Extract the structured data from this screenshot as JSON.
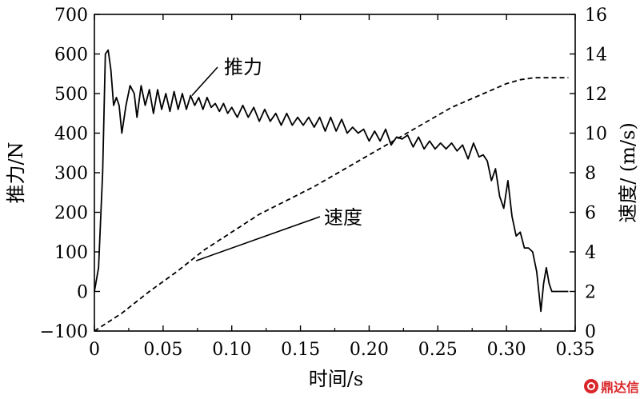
{
  "chart_data": {
    "type": "line",
    "xlabel": "时间/s",
    "ylabel_left": "推力/N",
    "ylabel_right": "速度/ (m/s)",
    "xlim": [
      0,
      0.35
    ],
    "ylim_left": [
      -100,
      700
    ],
    "ylim_right": [
      0,
      16
    ],
    "x_ticks": [
      "0",
      "0.05",
      "0.10",
      "0.15",
      "0.20",
      "0.25",
      "0.30",
      "0.35"
    ],
    "x_tick_values": [
      0,
      0.05,
      0.1,
      0.15,
      0.2,
      0.25,
      0.3,
      0.35
    ],
    "y_left_ticks": [
      "−100",
      "0",
      "100",
      "200",
      "300",
      "400",
      "500",
      "600",
      "700"
    ],
    "y_left_tick_values": [
      -100,
      0,
      100,
      200,
      300,
      400,
      500,
      600,
      700
    ],
    "y_right_ticks": [
      "0",
      "2",
      "4",
      "6",
      "8",
      "10",
      "12",
      "14",
      "16"
    ],
    "y_right_tick_values": [
      0,
      2,
      4,
      6,
      8,
      10,
      12,
      14,
      16
    ],
    "grid": false,
    "series": [
      {
        "name": "推力",
        "axis": "left",
        "style": "solid",
        "x": [
          0,
          0.003,
          0.006,
          0.008,
          0.01,
          0.012,
          0.014,
          0.016,
          0.018,
          0.02,
          0.023,
          0.026,
          0.029,
          0.031,
          0.034,
          0.037,
          0.04,
          0.043,
          0.046,
          0.049,
          0.052,
          0.055,
          0.058,
          0.061,
          0.064,
          0.067,
          0.07,
          0.073,
          0.076,
          0.079,
          0.082,
          0.085,
          0.088,
          0.091,
          0.094,
          0.097,
          0.1,
          0.104,
          0.108,
          0.112,
          0.116,
          0.12,
          0.124,
          0.128,
          0.132,
          0.136,
          0.14,
          0.144,
          0.148,
          0.152,
          0.156,
          0.16,
          0.164,
          0.168,
          0.172,
          0.176,
          0.18,
          0.184,
          0.188,
          0.192,
          0.196,
          0.2,
          0.204,
          0.208,
          0.212,
          0.216,
          0.22,
          0.224,
          0.228,
          0.232,
          0.236,
          0.24,
          0.244,
          0.248,
          0.252,
          0.256,
          0.26,
          0.264,
          0.268,
          0.272,
          0.276,
          0.28,
          0.283,
          0.286,
          0.289,
          0.292,
          0.295,
          0.298,
          0.301,
          0.304,
          0.307,
          0.31,
          0.313,
          0.316,
          0.319,
          0.322,
          0.325,
          0.327,
          0.329,
          0.331,
          0.333,
          0.336,
          0.34,
          0.345
        ],
        "y": [
          0,
          60,
          300,
          600,
          610,
          560,
          470,
          490,
          470,
          400,
          470,
          520,
          500,
          440,
          520,
          470,
          510,
          450,
          510,
          460,
          500,
          455,
          505,
          460,
          500,
          460,
          495,
          470,
          490,
          460,
          490,
          465,
          475,
          455,
          475,
          450,
          465,
          440,
          470,
          440,
          465,
          430,
          460,
          430,
          450,
          420,
          450,
          420,
          440,
          420,
          440,
          415,
          440,
          405,
          440,
          405,
          435,
          400,
          415,
          400,
          410,
          380,
          405,
          380,
          410,
          370,
          390,
          385,
          395,
          365,
          390,
          360,
          380,
          360,
          375,
          360,
          375,
          355,
          370,
          335,
          375,
          340,
          345,
          330,
          280,
          310,
          240,
          210,
          280,
          190,
          140,
          150,
          110,
          110,
          100,
          50,
          -50,
          20,
          60,
          20,
          0,
          0,
          0,
          0
        ]
      },
      {
        "name": "速度",
        "axis": "right",
        "style": "dashed",
        "x": [
          0,
          0.02,
          0.04,
          0.06,
          0.08,
          0.1,
          0.12,
          0.14,
          0.16,
          0.18,
          0.2,
          0.22,
          0.24,
          0.26,
          0.28,
          0.3,
          0.31,
          0.32,
          0.33,
          0.34,
          0.345
        ],
        "y": [
          0,
          0.9,
          2.0,
          3.0,
          4.1,
          5.0,
          5.9,
          6.6,
          7.3,
          8.1,
          8.9,
          9.7,
          10.5,
          11.3,
          11.9,
          12.5,
          12.7,
          12.8,
          12.8,
          12.8,
          12.8
        ]
      }
    ],
    "annotations": [
      {
        "text": "推力",
        "points_to_x": 0.071,
        "points_to_y": 495,
        "axis": "left"
      },
      {
        "text": "速度",
        "points_to_x": 0.074,
        "points_to_y": 3.55,
        "axis": "right"
      }
    ]
  },
  "watermark": {
    "text": "鼎达信"
  }
}
